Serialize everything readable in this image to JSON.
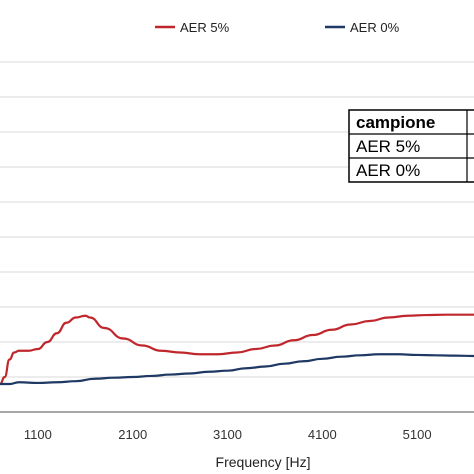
{
  "chart_data": {
    "type": "line",
    "xlabel": "Frequency [Hz]",
    "ylabel": "",
    "xlim": [
      700,
      5700
    ],
    "ylim": [
      0,
      1
    ],
    "x_ticks": [
      1100,
      2100,
      3100,
      4100,
      5100
    ],
    "x_tick_labels": [
      "1100",
      "2100",
      "3100",
      "4100",
      "5100"
    ],
    "y_ticks": [
      0.1,
      0.2,
      0.3,
      0.4,
      0.5,
      0.6,
      0.7,
      0.8,
      0.9,
      1.0
    ],
    "grid": true,
    "legend_position": "top",
    "series": [
      {
        "name": "AER 5%",
        "color": "#c0272d",
        "x": [
          700,
          750,
          800,
          850,
          900,
          1000,
          1100,
          1200,
          1300,
          1400,
          1500,
          1600,
          1650,
          1800,
          2000,
          2200,
          2400,
          2600,
          2800,
          3000,
          3200,
          3400,
          3600,
          3800,
          4000,
          4200,
          4400,
          4600,
          4800,
          5000,
          5200,
          5400,
          5700
        ],
        "y": [
          0.08,
          0.1,
          0.15,
          0.17,
          0.175,
          0.175,
          0.18,
          0.2,
          0.225,
          0.255,
          0.27,
          0.275,
          0.27,
          0.24,
          0.21,
          0.19,
          0.175,
          0.17,
          0.165,
          0.165,
          0.17,
          0.18,
          0.19,
          0.205,
          0.22,
          0.235,
          0.25,
          0.26,
          0.27,
          0.275,
          0.277,
          0.278,
          0.278
        ]
      },
      {
        "name": "AER 0%",
        "color": "#1f3864",
        "x": [
          700,
          800,
          900,
          1100,
          1300,
          1500,
          1700,
          1900,
          2100,
          2300,
          2500,
          2700,
          2900,
          3100,
          3300,
          3500,
          3700,
          3900,
          4100,
          4300,
          4500,
          4700,
          4900,
          5100,
          5300,
          5500,
          5700
        ],
        "y": [
          0.08,
          0.08,
          0.085,
          0.083,
          0.085,
          0.088,
          0.095,
          0.098,
          0.1,
          0.103,
          0.107,
          0.11,
          0.115,
          0.118,
          0.125,
          0.13,
          0.138,
          0.145,
          0.152,
          0.158,
          0.162,
          0.165,
          0.165,
          0.163,
          0.162,
          0.161,
          0.16
        ]
      }
    ]
  },
  "legend": {
    "items": [
      {
        "label": "AER 5%",
        "color": "#c0272d"
      },
      {
        "label": "AER 0%",
        "color": "#1f3864"
      }
    ]
  },
  "table": {
    "header": "campione",
    "rows": [
      "AER 5%",
      "AER 0%"
    ]
  },
  "colors": {
    "grid": "#d9d9d9",
    "axis": "#8c8c8c"
  }
}
